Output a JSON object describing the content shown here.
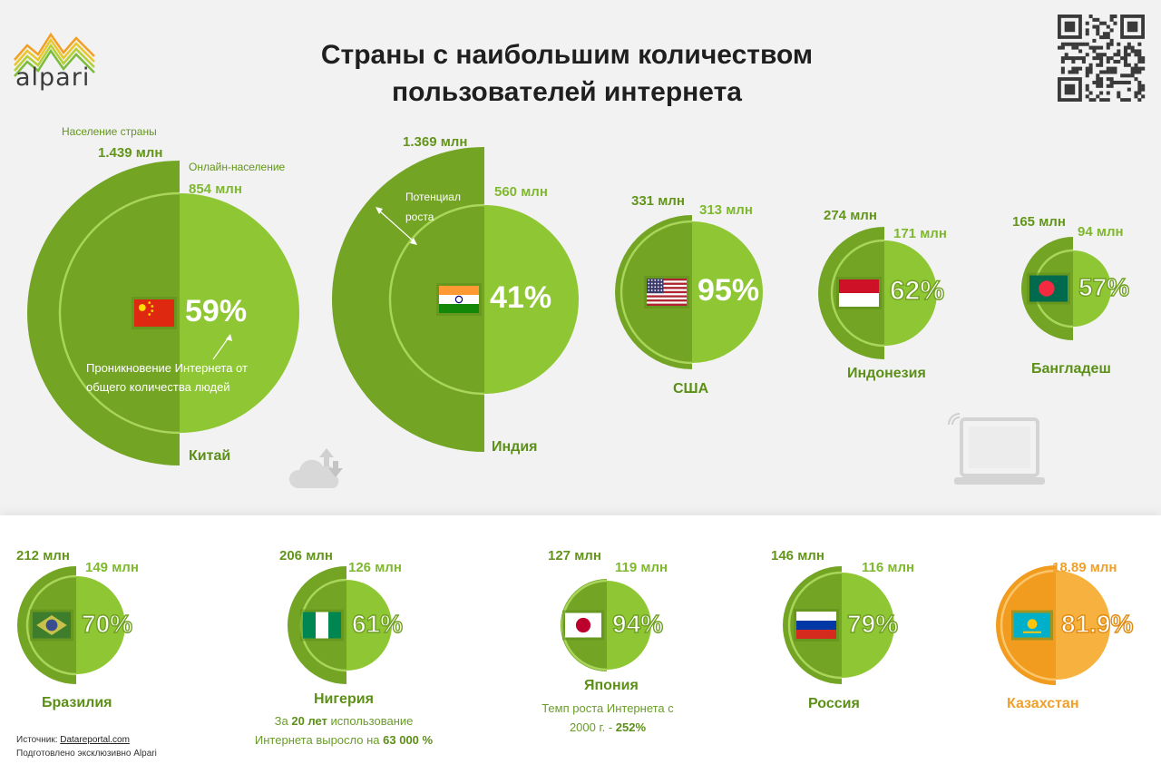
{
  "header": {
    "title_line1": "Страны с наибольшим количеством",
    "title_line2": "пользователей интернета",
    "logo_text": "alpari"
  },
  "legend": {
    "population": "Население страны",
    "online": "Онлайн-население",
    "growth_potential_line1": "Потенциал",
    "growth_potential_line2": "роста",
    "penetration_line1": "Проникновение Интернета от",
    "penetration_line2": "общего количества людей"
  },
  "notes": {
    "nigeria_line1_pre": "За ",
    "nigeria_line1_bold": "20 лет",
    "nigeria_line1_post": " использование",
    "nigeria_line2_pre": "Интернета выросло на ",
    "nigeria_line2_bold": "63 000 %",
    "japan_line1": "Темп роста Интернета с",
    "japan_line2_pre": "2000 г. - ",
    "japan_line2_bold": "252%"
  },
  "source": {
    "label": "Источник: ",
    "link": "Datareportal.com",
    "credit": "Подготовлено эксклюзивно Alpari"
  },
  "colors": {
    "dark_green": "#73a424",
    "light_green": "#8fc734",
    "ring_green": "#a8d55a",
    "dark_orange": "#f29c1f",
    "light_orange": "#f7b13e",
    "background": "#f2f2f2"
  },
  "chart_data": {
    "type": "pie",
    "title": "Страны с наибольшим количеством пользователей интернета",
    "series_names": [
      "Население страны",
      "Онлайн-население"
    ],
    "countries": [
      {
        "name": "Китай",
        "population": "1.439 млн",
        "online": "854 млн",
        "penetration": "59%",
        "population_value": 1439,
        "online_value": 854,
        "penetration_value": 59,
        "flag": "china-flag-icon"
      },
      {
        "name": "Индия",
        "population": "1.369 млн",
        "online": "560 млн",
        "penetration": "41%",
        "population_value": 1369,
        "online_value": 560,
        "penetration_value": 41,
        "flag": "india-flag-icon"
      },
      {
        "name": "США",
        "population": "331 млн",
        "online": "313 млн",
        "penetration": "95%",
        "population_value": 331,
        "online_value": 313,
        "penetration_value": 95,
        "flag": "usa-flag-icon"
      },
      {
        "name": "Индонезия",
        "population": "274 млн",
        "online": "171 млн",
        "penetration": "62%",
        "population_value": 274,
        "online_value": 171,
        "penetration_value": 62,
        "flag": "indonesia-flag-icon"
      },
      {
        "name": "Бангладеш",
        "population": "165 млн",
        "online": "94 млн",
        "penetration": "57%",
        "population_value": 165,
        "online_value": 94,
        "penetration_value": 57,
        "flag": "bangladesh-flag-icon"
      },
      {
        "name": "Бразилия",
        "population": "212 млн",
        "online": "149 млн",
        "penetration": "70%",
        "population_value": 212,
        "online_value": 149,
        "penetration_value": 70,
        "flag": "brazil-flag-icon"
      },
      {
        "name": "Нигерия",
        "population": "206 млн",
        "online": "126 млн",
        "penetration": "61%",
        "population_value": 206,
        "online_value": 126,
        "penetration_value": 61,
        "flag": "nigeria-flag-icon"
      },
      {
        "name": "Япония",
        "population": "127 млн",
        "online": "119 млн",
        "penetration": "94%",
        "population_value": 127,
        "online_value": 119,
        "penetration_value": 94,
        "flag": "japan-flag-icon"
      },
      {
        "name": "Россия",
        "population": "146 млн",
        "online": "116 млн",
        "penetration": "79%",
        "population_value": 146,
        "online_value": 116,
        "penetration_value": 79,
        "flag": "russia-flag-icon"
      },
      {
        "name": "Казахстан",
        "population": "",
        "online": "18.89 млн",
        "penetration": "81.9%",
        "population_value": null,
        "online_value": 18.89,
        "penetration_value": 81.9,
        "flag": "kazakhstan-flag-icon",
        "highlight": true
      }
    ]
  }
}
